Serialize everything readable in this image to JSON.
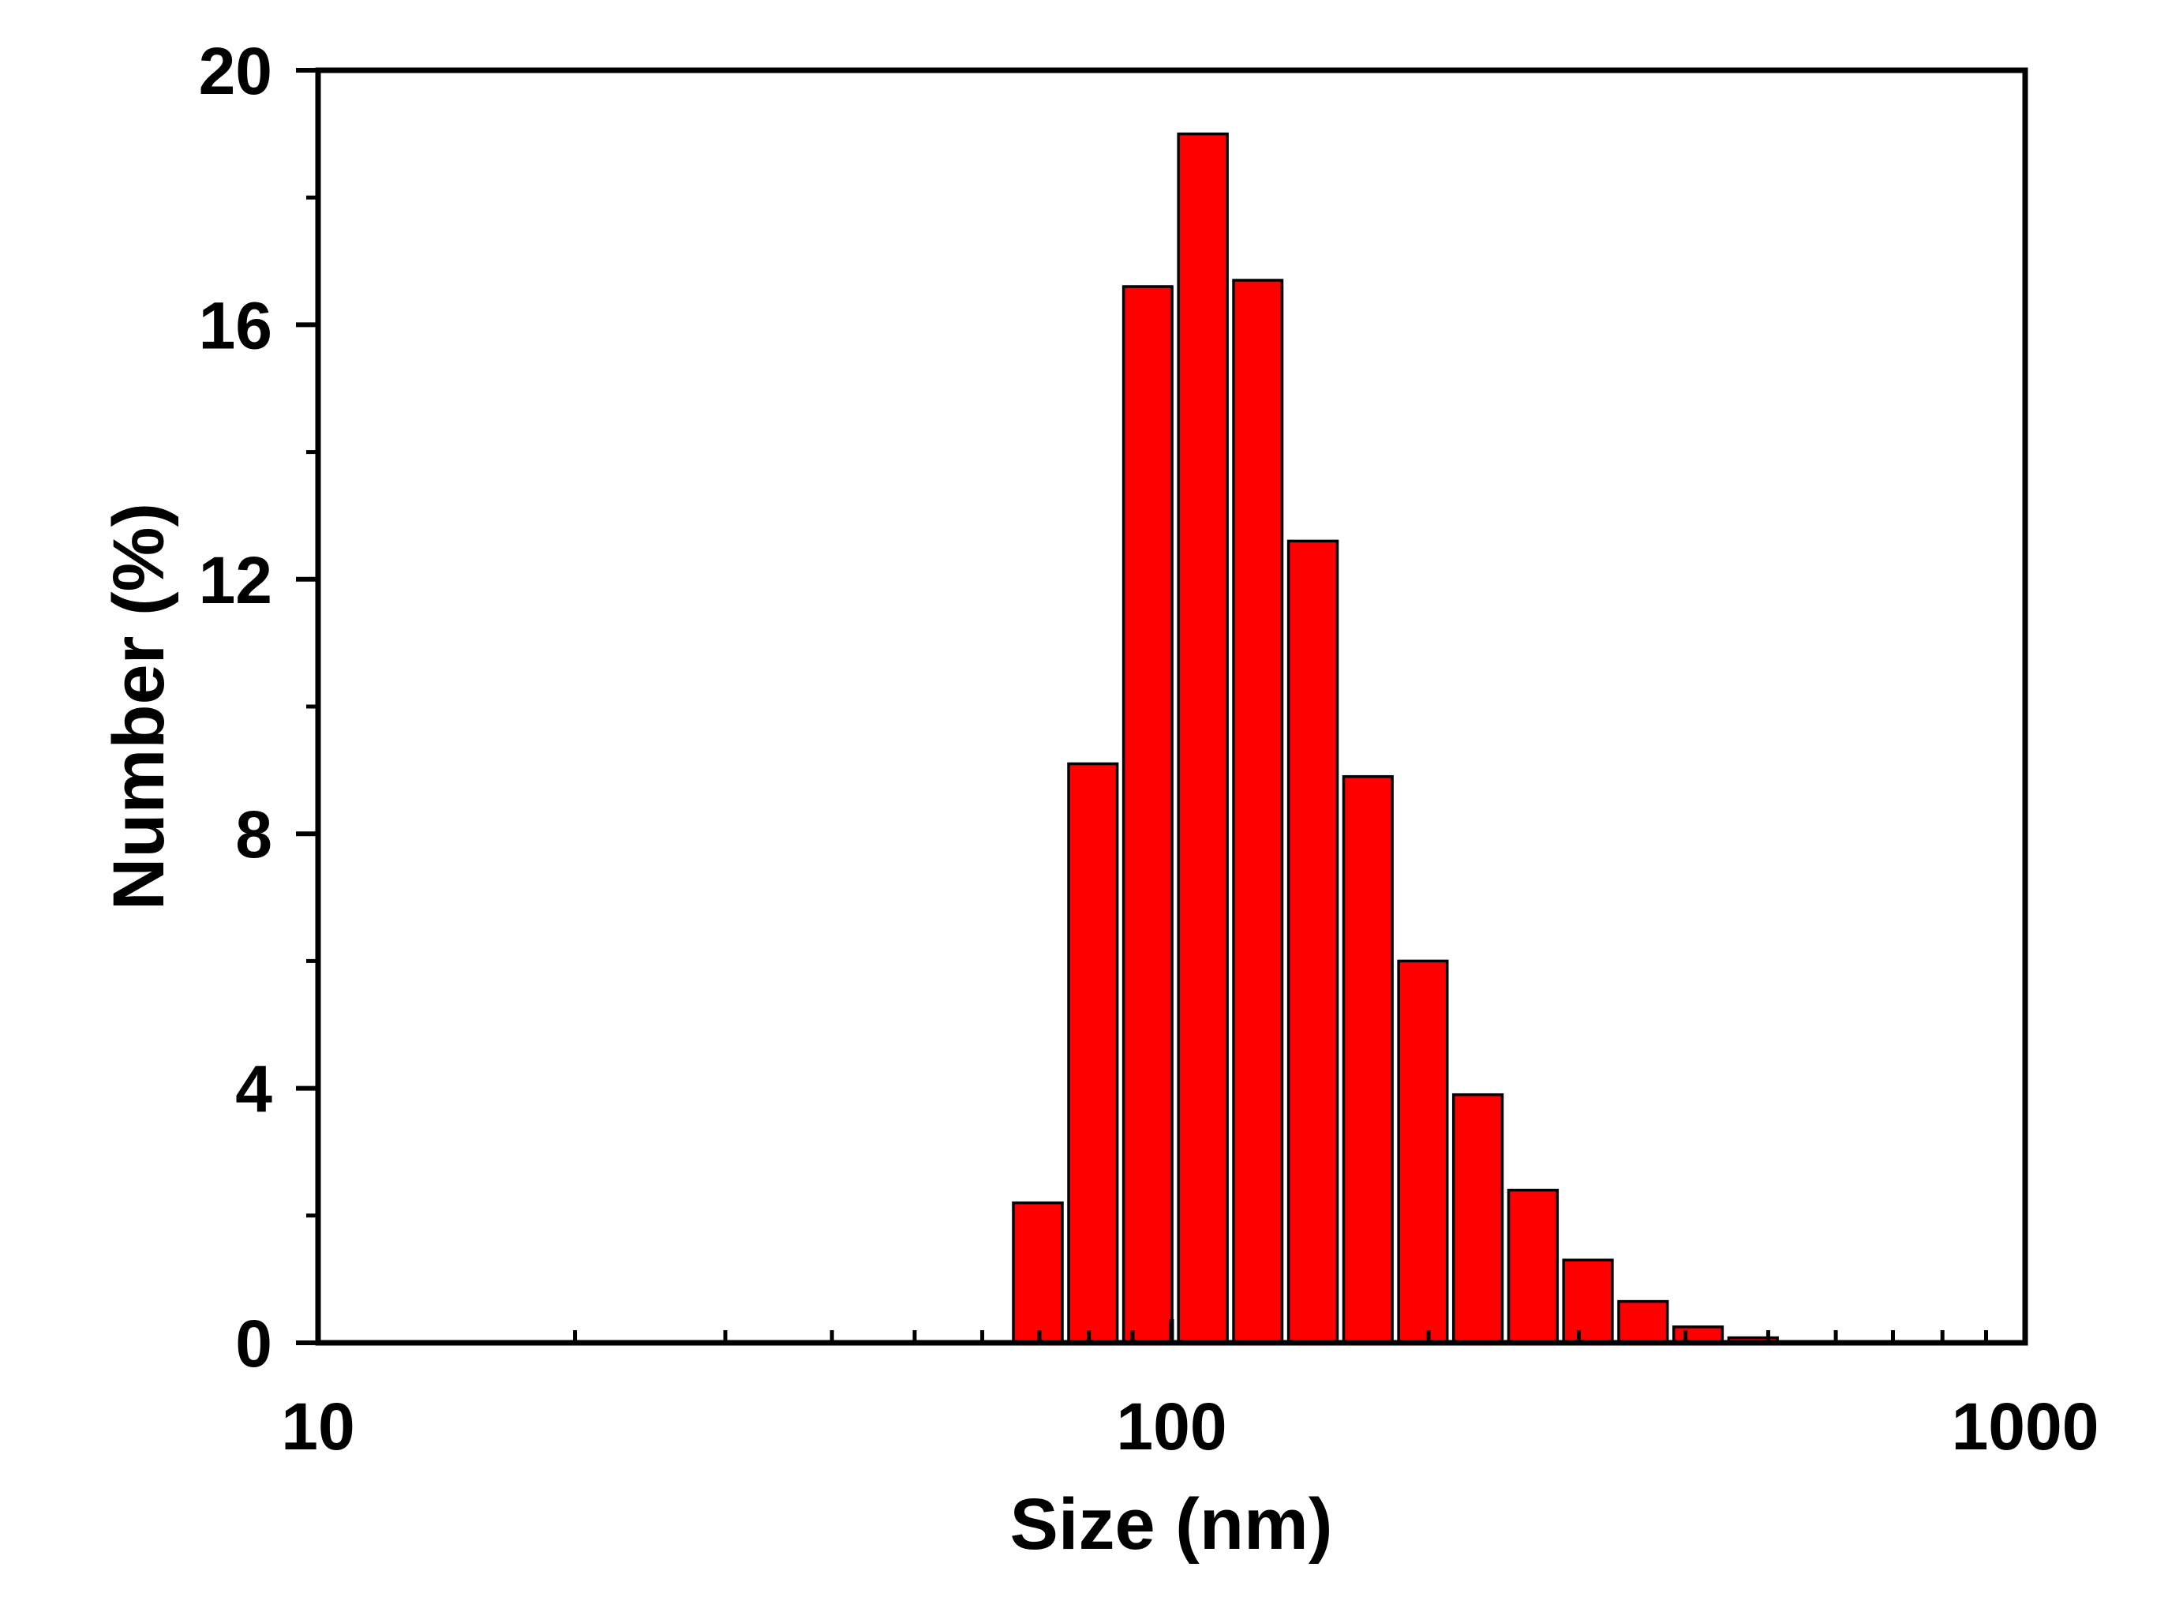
{
  "chart_data": {
    "type": "bar",
    "title": "",
    "xlabel": "Size (nm)",
    "ylabel": "Number (%)",
    "x_scale": "log",
    "xlim": [
      10,
      1000
    ],
    "ylim": [
      0,
      20
    ],
    "x_tick_labels": [
      "10",
      "100",
      "1000"
    ],
    "y_tick_labels": [
      "0",
      "4",
      "8",
      "12",
      "16",
      "20"
    ],
    "grid": false,
    "legend": "none",
    "bar_color": "#ff0000",
    "bar_edge_color": "#000000",
    "bins": [
      {
        "from": 64.7,
        "to": 75.1,
        "value": 2.2
      },
      {
        "from": 75.1,
        "to": 87.1,
        "value": 9.1
      },
      {
        "from": 87.1,
        "to": 101.0,
        "value": 16.6
      },
      {
        "from": 101.0,
        "to": 117.2,
        "value": 19.0
      },
      {
        "from": 117.2,
        "to": 135.9,
        "value": 16.7
      },
      {
        "from": 135.9,
        "to": 157.7,
        "value": 12.6
      },
      {
        "from": 157.7,
        "to": 182.9,
        "value": 8.9
      },
      {
        "from": 182.9,
        "to": 212.1,
        "value": 6.0
      },
      {
        "from": 212.1,
        "to": 246.1,
        "value": 3.9
      },
      {
        "from": 246.1,
        "to": 285.5,
        "value": 2.4
      },
      {
        "from": 285.5,
        "to": 331.2,
        "value": 1.3
      },
      {
        "from": 331.2,
        "to": 384.2,
        "value": 0.65
      },
      {
        "from": 384.2,
        "to": 445.7,
        "value": 0.25
      },
      {
        "from": 445.7,
        "to": 517.0,
        "value": 0.08
      }
    ]
  }
}
